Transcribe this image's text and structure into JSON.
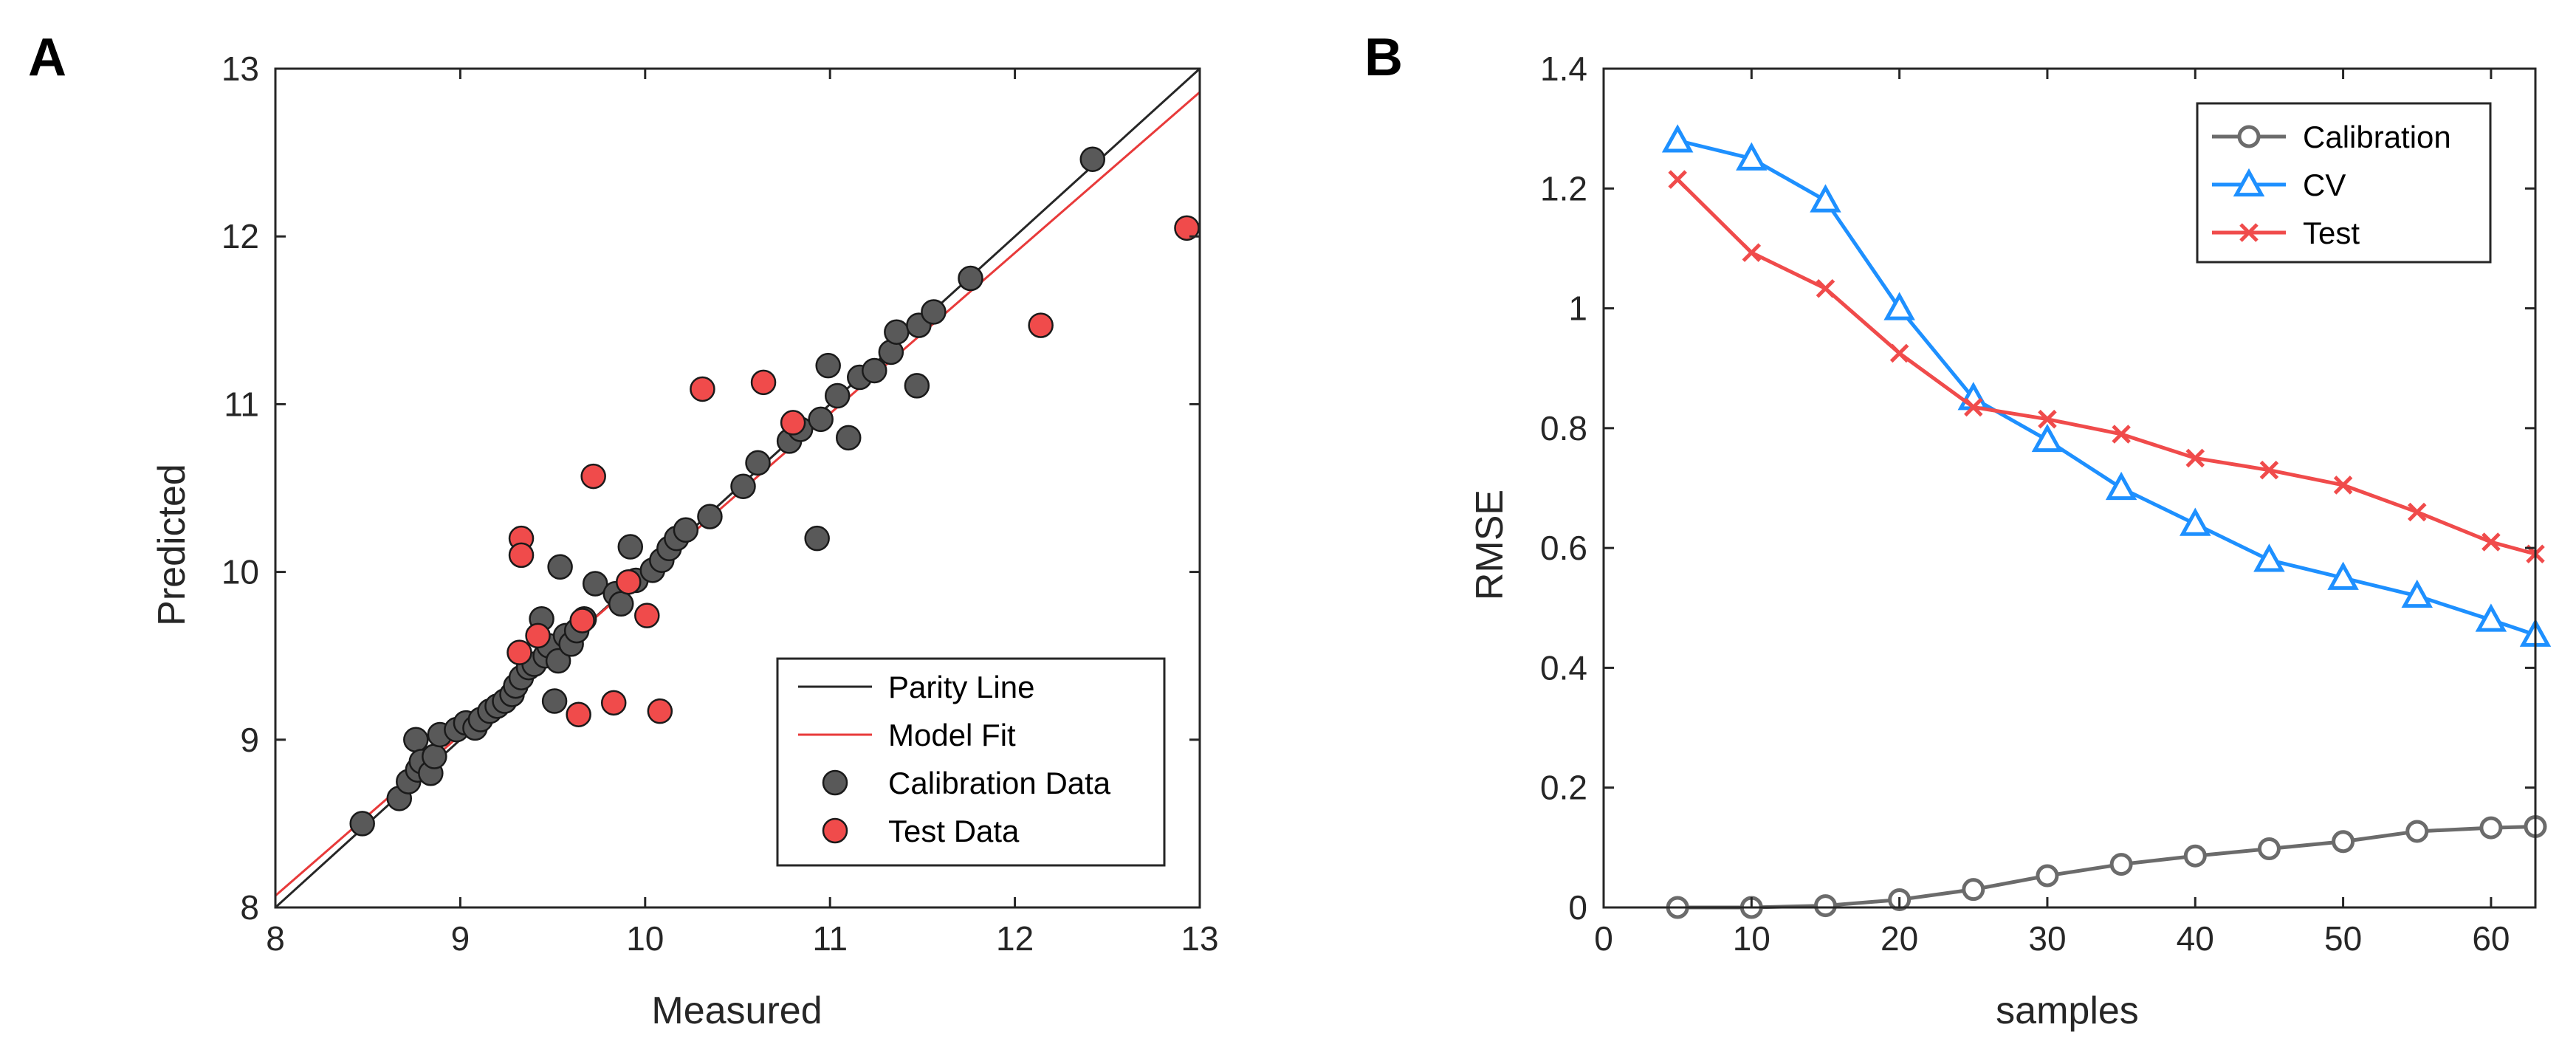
{
  "chart_data": [
    {
      "panel_label": "A",
      "type": "scatter",
      "title": "",
      "xlabel": "Measured",
      "ylabel": "Predicted",
      "xlim": [
        8,
        13
      ],
      "ylim": [
        8,
        13
      ],
      "xticks": [
        "8",
        "9",
        "10",
        "11",
        "12",
        "13"
      ],
      "yticks": [
        "8",
        "9",
        "10",
        "11",
        "12",
        "13"
      ],
      "legend_position": "bottom-right",
      "lines": [
        {
          "name": "Parity Line",
          "color": "#262626",
          "x": [
            8,
            13
          ],
          "y": [
            8,
            13
          ]
        },
        {
          "name": "Model Fit",
          "color": "#e83a3a",
          "x": [
            8,
            13
          ],
          "y": [
            8.07,
            12.86
          ]
        }
      ],
      "series": [
        {
          "name": "Calibration Data",
          "color": "#595959",
          "x": [
            8.47,
            8.67,
            8.72,
            8.76,
            8.77,
            8.79,
            8.84,
            8.86,
            8.89,
            8.98,
            9.03,
            9.08,
            9.11,
            9.16,
            9.2,
            9.24,
            9.28,
            9.3,
            9.33,
            9.37,
            9.4,
            9.44,
            9.46,
            9.48,
            9.51,
            9.53,
            9.54,
            9.57,
            9.6,
            9.63,
            9.67,
            9.73,
            9.84,
            9.87,
            9.92,
            9.95,
            10.04,
            10.09,
            10.13,
            10.17,
            10.22,
            10.35,
            10.53,
            10.61,
            10.78,
            10.84,
            10.93,
            10.95,
            10.99,
            11.04,
            11.1,
            11.16,
            11.24,
            11.33,
            11.36,
            11.47,
            11.48,
            11.56,
            11.76,
            12.42
          ],
          "y": [
            8.5,
            8.65,
            8.75,
            9.0,
            8.82,
            8.87,
            8.8,
            8.9,
            9.03,
            9.06,
            9.1,
            9.07,
            9.12,
            9.17,
            9.2,
            9.23,
            9.27,
            9.32,
            9.37,
            9.43,
            9.45,
            9.72,
            9.5,
            9.56,
            9.23,
            9.47,
            10.03,
            9.62,
            9.57,
            9.65,
            9.72,
            9.93,
            9.87,
            9.81,
            10.15,
            9.95,
            10.01,
            10.07,
            10.14,
            10.2,
            10.25,
            10.33,
            10.51,
            10.65,
            10.78,
            10.85,
            10.2,
            10.91,
            11.23,
            11.05,
            10.8,
            11.16,
            11.2,
            11.31,
            11.43,
            11.11,
            11.47,
            11.55,
            11.75,
            12.46
          ]
        },
        {
          "name": "Test Data",
          "color": "#f04b4b",
          "x": [
            9.33,
            9.33,
            9.32,
            9.42,
            9.64,
            9.66,
            9.72,
            9.83,
            9.91,
            10.01,
            10.08,
            10.31,
            10.64,
            10.8,
            12.14,
            12.93
          ],
          "y": [
            10.2,
            10.1,
            9.52,
            9.62,
            9.15,
            9.71,
            10.57,
            9.22,
            9.94,
            9.74,
            9.17,
            11.09,
            11.13,
            10.89,
            11.47,
            12.05
          ]
        }
      ]
    },
    {
      "panel_label": "B",
      "type": "line",
      "title": "",
      "xlabel": "samples",
      "ylabel": "RMSE",
      "xlim": [
        0,
        63
      ],
      "ylim": [
        0,
        1.4
      ],
      "xticks": [
        "0",
        "10",
        "20",
        "30",
        "40",
        "50",
        "60"
      ],
      "yticks": [
        "0",
        "0.2",
        "0.4",
        "0.6",
        "0.8",
        "1",
        "1.2",
        "1.4"
      ],
      "legend_position": "top-right",
      "x": [
        5,
        10,
        15,
        20,
        25,
        30,
        35,
        40,
        45,
        50,
        55,
        60,
        63
      ],
      "series": [
        {
          "name": "Calibration",
          "color": "#6b6b6b",
          "marker": "circle",
          "values": [
            0.0,
            0.0,
            0.003,
            0.013,
            0.03,
            0.053,
            0.072,
            0.086,
            0.098,
            0.11,
            0.127,
            0.133,
            0.135
          ]
        },
        {
          "name": "CV",
          "color": "#1e90ff",
          "marker": "triangle",
          "values": [
            1.28,
            1.25,
            1.18,
            1.0,
            0.85,
            0.78,
            0.7,
            0.64,
            0.58,
            0.55,
            0.52,
            0.48,
            0.455
          ]
        },
        {
          "name": "Test",
          "color": "#f04b4b",
          "marker": "x",
          "values": [
            1.215,
            1.093,
            1.033,
            0.925,
            0.835,
            0.815,
            0.79,
            0.75,
            0.73,
            0.705,
            0.66,
            0.61,
            0.59
          ]
        }
      ]
    }
  ]
}
